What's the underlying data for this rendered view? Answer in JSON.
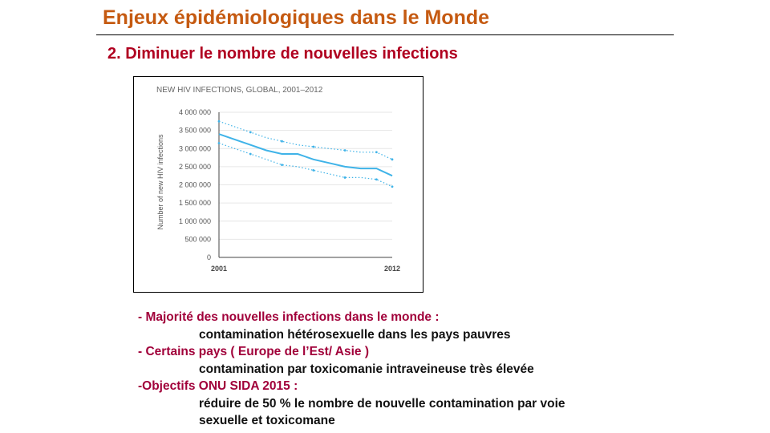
{
  "slide": {
    "title": "Enjeux épidémiologiques dans le Monde",
    "subtitle": "2. Diminuer le nombre de nouvelles infections"
  },
  "colors": {
    "title": "#c55a11",
    "subtitle": "#b00020",
    "bullet_heading": "#a1003a",
    "series_line": "#3fb3e8",
    "axis_text": "#555555"
  },
  "bullets": [
    {
      "heading": "-  Majorité des  nouvelles infections dans le monde :",
      "details": [
        "contamination hétérosexuelle dans les pays pauvres"
      ]
    },
    {
      "heading": "- Certains pays ( Europe de l’Est/ Asie )",
      "details": [
        "contamination par toxicomanie intraveineuse très élevée"
      ]
    },
    {
      "heading": "-Objectifs ONU SIDA 2015 :",
      "details": [
        " réduire de 50 % le nombre de nouvelle contamination par voie",
        "sexuelle et toxicomane"
      ]
    }
  ],
  "chart_data": {
    "type": "line",
    "title": "NEW HIV INFECTIONS, GLOBAL, 2001–2012",
    "xlabel": "",
    "ylabel": "Number of new HIV infections",
    "x": [
      2001,
      2002,
      2003,
      2004,
      2005,
      2006,
      2007,
      2008,
      2009,
      2010,
      2011,
      2012
    ],
    "xticks": [
      "2001",
      "2012"
    ],
    "yticks": [
      "0",
      "500 000",
      "1 000 000",
      "1 500 000",
      "2 000 000",
      "2 500 000",
      "3 000 000",
      "3 500 000",
      "4 000 000"
    ],
    "ylim": [
      0,
      4000000
    ],
    "grid": true,
    "series": [
      {
        "role": "estimate",
        "style": "solid",
        "values": [
          3400000,
          3250000,
          3100000,
          2950000,
          2850000,
          2850000,
          2700000,
          2600000,
          2500000,
          2450000,
          2450000,
          2250000
        ]
      },
      {
        "role": "upper bound",
        "style": "dotted",
        "values": [
          3750000,
          3600000,
          3450000,
          3300000,
          3200000,
          3100000,
          3050000,
          3000000,
          2950000,
          2900000,
          2900000,
          2700000
        ]
      },
      {
        "role": "lower bound",
        "style": "dotted",
        "values": [
          3150000,
          3000000,
          2850000,
          2700000,
          2550000,
          2500000,
          2400000,
          2300000,
          2200000,
          2200000,
          2150000,
          1950000
        ]
      }
    ]
  }
}
